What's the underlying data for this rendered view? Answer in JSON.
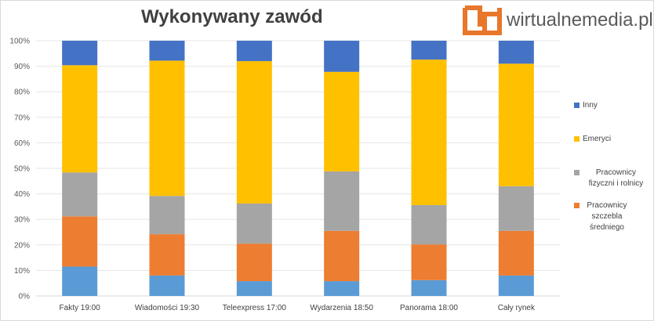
{
  "chart_data": {
    "type": "bar",
    "stacked": true,
    "title": "Wykonywany zawód",
    "categories": [
      "Fakty 19:00",
      "Wiadomości 19:30",
      "Teleexpress 17:00",
      "Wydarzenia 18:50",
      "Panorama 18:00",
      "Cały rynek"
    ],
    "ylim": [
      0,
      100
    ],
    "yticks": [
      "0%",
      "10%",
      "20%",
      "30%",
      "40%",
      "50%",
      "60%",
      "70%",
      "80%",
      "90%",
      "100%"
    ],
    "series": [
      {
        "name": "",
        "color": "#5b9bd5",
        "values": [
          11.5,
          8,
          5.8,
          5.8,
          6.2,
          8
        ]
      },
      {
        "name": "Pracownicy szczebla średniego",
        "color": "#ed7d31",
        "values": [
          19.7,
          16.2,
          14.7,
          19.7,
          14,
          17.5
        ]
      },
      {
        "name": "Pracownicy fizyczni i rolnicy",
        "color": "#a5a5a5",
        "values": [
          17.2,
          15,
          15.7,
          23.3,
          15.4,
          17.5
        ]
      },
      {
        "name": "Emeryci",
        "color": "#ffc000",
        "values": [
          42,
          53,
          55.8,
          39,
          57,
          48
        ]
      },
      {
        "name": "Inny",
        "color": "#4472c4",
        "values": [
          9.6,
          7.8,
          8,
          12.2,
          7.4,
          9
        ]
      }
    ],
    "legend_position": "right"
  },
  "brand": {
    "text": "wirtualnemedia.pl",
    "logo_color": "#e8762b"
  },
  "legend": {
    "items": [
      {
        "label": "Inny",
        "color": "#4472c4"
      },
      {
        "label": "Emeryci",
        "color": "#ffc000"
      },
      {
        "label": "Pracownicy fizyczni i rolnicy",
        "color": "#a5a5a5"
      },
      {
        "label": "Pracownicy szczebla średniego",
        "color": "#ed7d31"
      }
    ]
  }
}
